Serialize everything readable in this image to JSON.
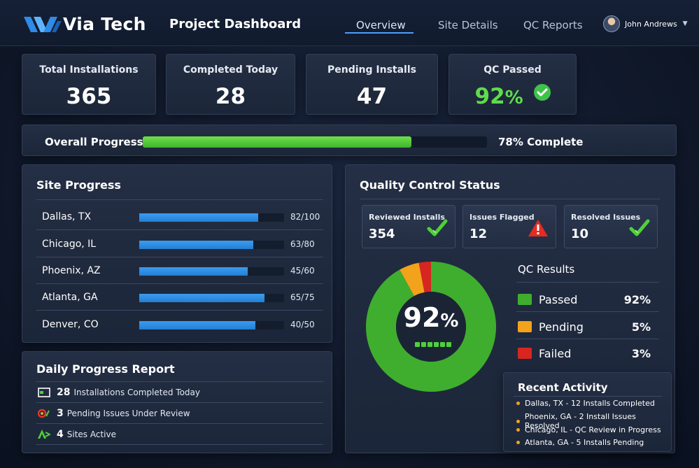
{
  "header": {
    "brand": "Via Tech",
    "title": "Project Dashboard",
    "tabs": [
      "Overview",
      "Site Details",
      "QC Reports"
    ],
    "active_tab": "Overview",
    "user_name": "John Andrews"
  },
  "stats": [
    {
      "label": "Total Installations",
      "value": "365"
    },
    {
      "label": "Completed Today",
      "value": "28"
    },
    {
      "label": "Pending Installs",
      "value": "47"
    },
    {
      "label": "QC Passed",
      "value": "92",
      "unit": "%"
    }
  ],
  "overall": {
    "label": "Overall Progress",
    "percent": 78,
    "text": "78% Complete"
  },
  "site_progress": {
    "title": "Site Progress",
    "sites": [
      {
        "name": "Dallas, TX",
        "done": 82,
        "total": 100,
        "label": "82/100"
      },
      {
        "name": "Chicago, IL",
        "done": 63,
        "total": 80,
        "label": "63/80"
      },
      {
        "name": "Phoenix, AZ",
        "done": 45,
        "total": 60,
        "label": "45/60"
      },
      {
        "name": "Atlanta, GA",
        "done": 65,
        "total": 75,
        "label": "65/75"
      },
      {
        "name": "Denver, CO",
        "done": 40,
        "total": 50,
        "label": "40/50"
      }
    ]
  },
  "daily_report": {
    "title": "Daily Progress Report",
    "items": [
      {
        "num": "28",
        "text": "Installations Completed Today",
        "icon": "install-icon"
      },
      {
        "num": "3",
        "text": "Pending Issues Under Review",
        "icon": "review-icon"
      },
      {
        "num": "4",
        "text": "Sites Active",
        "icon": "site-icon"
      }
    ]
  },
  "qc_status": {
    "title": "Quality Control Status",
    "cards": [
      {
        "label": "Reviewed Installs",
        "value": "354",
        "icon": "checkmark-icon"
      },
      {
        "label": "Issues Flagged",
        "value": "12",
        "icon": "warning-icon"
      },
      {
        "label": "Resolved Issues",
        "value": "10",
        "icon": "checkmark-icon"
      }
    ],
    "center_value": "92",
    "center_unit": "%",
    "results_title": "QC Results",
    "results": [
      {
        "name": "Passed",
        "value": 92,
        "label": "92%",
        "color": "#3fae2e"
      },
      {
        "name": "Pending",
        "value": 5,
        "label": "5%",
        "color": "#f2a31b"
      },
      {
        "name": "Failed",
        "value": 3,
        "label": "3%",
        "color": "#d7261f"
      }
    ]
  },
  "recent_activity": {
    "title": "Recent Activity",
    "items": [
      "Dallas, TX - 12 Installs Completed",
      "Phoenix, GA - 2 Install Issues Resolved",
      "Chicago, IL - QC Review in Progress",
      "Atlanta, GA - 5 Installs Pending"
    ]
  }
}
